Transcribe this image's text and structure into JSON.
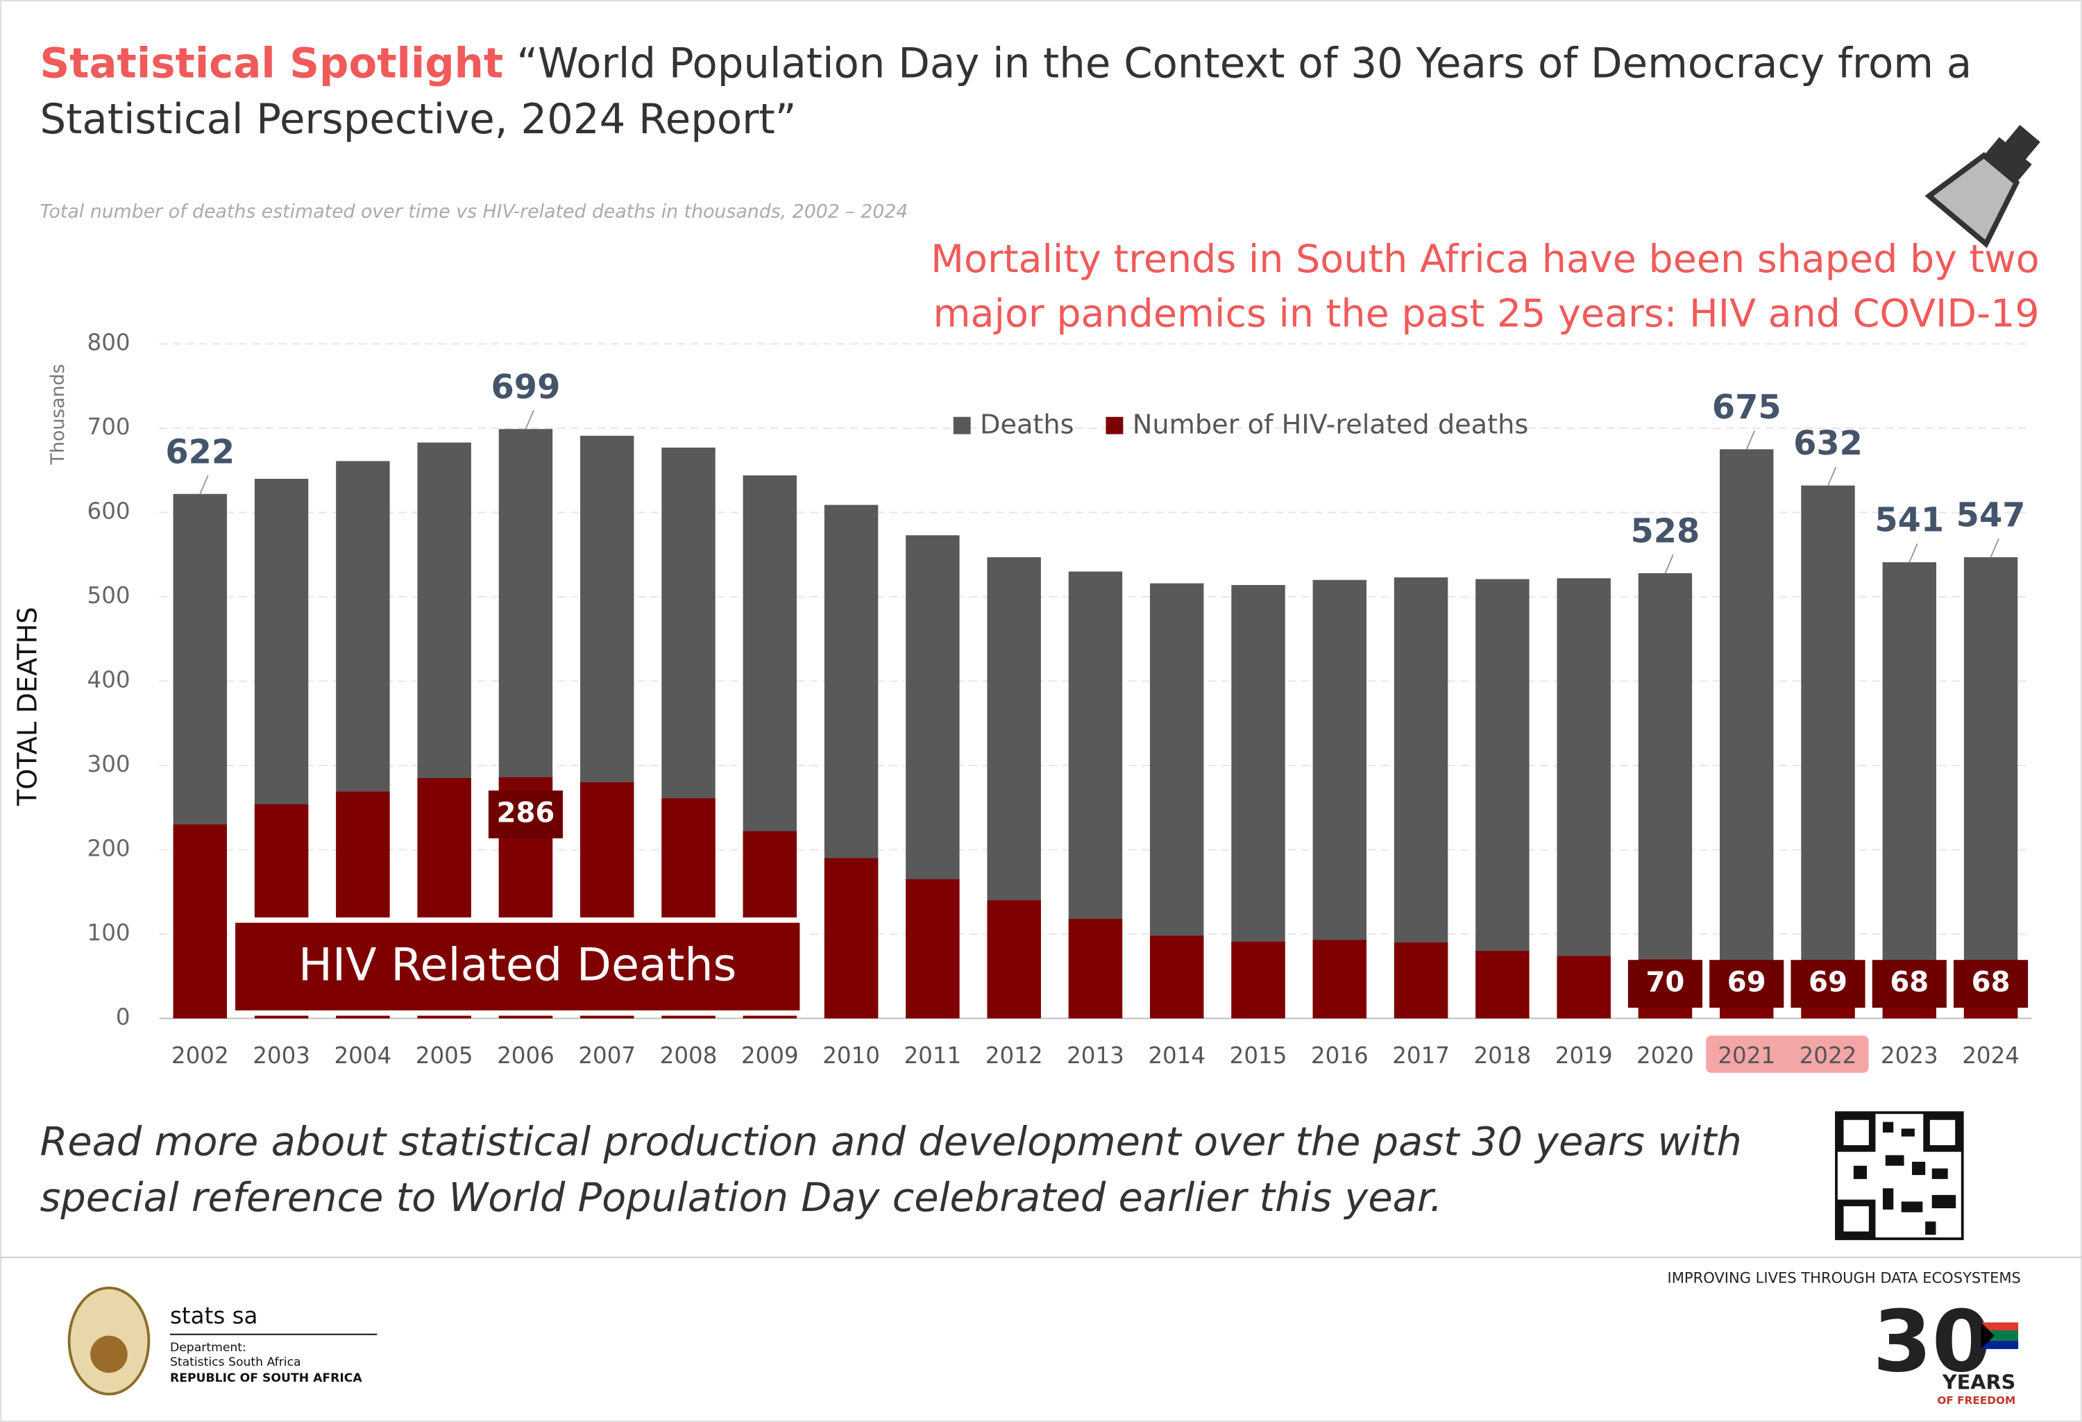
{
  "header": {
    "spotlight": "Statistical Spotlight",
    "title_lines": [
      "“World Population Day in the Context of 30 Years of Democracy from a",
      "Statistical Perspective, 2024 Report”"
    ]
  },
  "chart_data": {
    "type": "bar",
    "subtitle": "Total number of deaths estimated over time vs HIV-related deaths in thousands, 2002 – 2024",
    "headline_lines": [
      "Mortality trends in South Africa have been shaped by two",
      "major pandemics in the past 25 years: HIV and COVID-19"
    ],
    "y_label": "TOTAL DEATHS",
    "y_unit": "Thousands",
    "annotation": "HIV Related Deaths",
    "categories": [
      "2002",
      "2003",
      "2004",
      "2005",
      "2006",
      "2007",
      "2008",
      "2009",
      "2010",
      "2011",
      "2012",
      "2013",
      "2014",
      "2015",
      "2016",
      "2017",
      "2018",
      "2019",
      "2020",
      "2021",
      "2022",
      "2023",
      "2024"
    ],
    "highlight": [
      "2021",
      "2022"
    ],
    "series": [
      {
        "name": "Deaths",
        "color": "#595959",
        "values": [
          622,
          640,
          661,
          683,
          699,
          691,
          677,
          644,
          609,
          573,
          547,
          530,
          516,
          514,
          520,
          523,
          521,
          522,
          528,
          675,
          632,
          541,
          547
        ],
        "value_labels": [
          "622",
          null,
          null,
          null,
          "699",
          null,
          null,
          null,
          null,
          null,
          null,
          null,
          null,
          null,
          null,
          null,
          null,
          null,
          "528",
          "675",
          "632",
          "541",
          "547"
        ]
      },
      {
        "name": "Number of HIV-related deaths",
        "color": "#7f0000",
        "values": [
          230,
          254,
          269,
          285,
          286,
          280,
          261,
          222,
          190,
          165,
          140,
          118,
          98,
          91,
          93,
          90,
          80,
          74,
          70,
          69,
          69,
          68,
          68
        ],
        "value_labels": [
          null,
          null,
          null,
          null,
          "286",
          null,
          null,
          null,
          null,
          null,
          null,
          null,
          null,
          null,
          null,
          null,
          null,
          null,
          "70",
          "69",
          "69",
          "68",
          "68"
        ]
      }
    ],
    "ylim": [
      0,
      800
    ],
    "yticks": [
      0,
      100,
      200,
      300,
      400,
      500,
      600,
      700,
      800
    ],
    "grid": true
  },
  "footer": {
    "text_lines": [
      "Read more about statistical production and development over the past 30 years with",
      "special reference to World Population Day celebrated earlier this year."
    ],
    "org": "stats sa",
    "dept": "Department:",
    "dept_name": "Statistics South Africa",
    "country": "REPUBLIC OF SOUTH AFRICA",
    "slogan": "IMPROVING LIVES THROUGH DATA ECOSYSTEMS",
    "logo_number": "30",
    "logo_years": "YEARS",
    "logo_freedom": "OF FREEDOM"
  }
}
